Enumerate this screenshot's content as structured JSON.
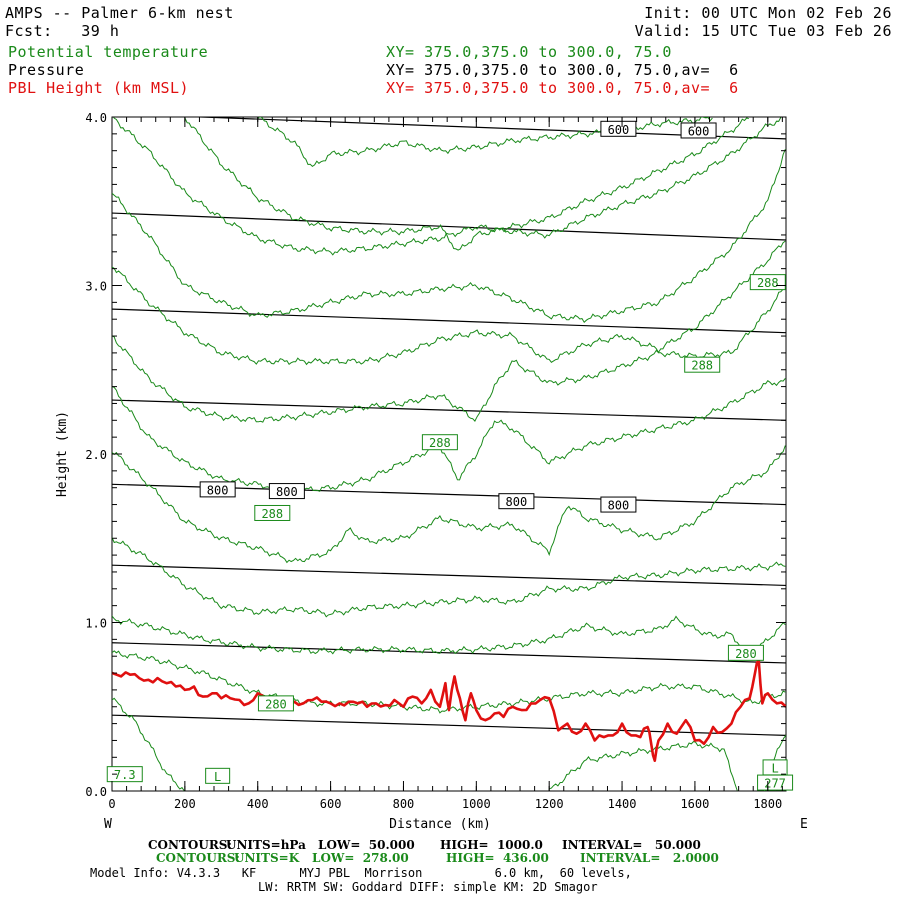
{
  "header": {
    "model_title": "AMPS -- Palmer 6-km nest",
    "init_time": "Init: 00 UTC Mon 02 Feb 26",
    "forecast": "Fcst:   39 h",
    "valid_time": "Valid: 15 UTC Tue 03 Feb 26",
    "fields": [
      {
        "name": "Potential temperature",
        "xy": "XY= 375.0,375.0 to 300.0, 75.0",
        "color": "#1a8a1a"
      },
      {
        "name": "Pressure",
        "xy": "XY= 375.0,375.0 to 300.0, 75.0,av=  6",
        "color": "#000000"
      },
      {
        "name": "PBL Height (km MSL)",
        "xy": "XY= 375.0,375.0 to 300.0, 75.0,av=  6",
        "color": "#e01010"
      }
    ]
  },
  "footer": {
    "pressure_contours": {
      "label": "CONTOURS:",
      "units": "UNITS=hPa",
      "low": "LOW=  50.000",
      "high": "HIGH=  1000.0",
      "interval": "INTERVAL=   50.000"
    },
    "theta_contours": {
      "label": "CONTOURS:",
      "units": "UNITS=K",
      "low": "LOW=  278.00",
      "high": "HIGH=  436.00",
      "interval": "INTERVAL=   2.0000"
    },
    "model_info_1": "Model Info: V4.3.3   KF      MYJ PBL  Morrison          6.0 km,  60 levels,",
    "model_info_2": "LW: RRTM SW: Goddard DIFF: simple KM: 2D Smagor"
  },
  "chart_data": {
    "type": "line",
    "title": "",
    "xlabel": "Distance (km)",
    "ylabel": "Height (km)",
    "xlim": [
      0,
      1850
    ],
    "ylim": [
      0,
      4.0
    ],
    "x_ticks": [
      0,
      200,
      400,
      600,
      800,
      1000,
      1200,
      1400,
      1600,
      1800
    ],
    "y_ticks": [
      0.0,
      1.0,
      2.0,
      3.0,
      4.0
    ],
    "x_tick_labels": [
      "0",
      "200",
      "400",
      "600",
      "800",
      "1000",
      "1200",
      "1400",
      "1600",
      "1800"
    ],
    "y_tick_labels": [
      "0.0",
      "1.0",
      "2.0",
      "3.0",
      "4.0"
    ],
    "left_end_label": "W",
    "right_end_label": "E",
    "colors": {
      "pressure": "#000000",
      "theta": "#1a8a1a",
      "pbl": "#e01010"
    },
    "pressure_isobars": [
      {
        "y0": 0.45,
        "y1": 0.33
      },
      {
        "y0": 0.88,
        "y1": 0.76
      },
      {
        "y0": 1.34,
        "y1": 1.22
      },
      {
        "y0": 1.82,
        "y1": 1.7
      },
      {
        "y0": 2.32,
        "y1": 2.2
      },
      {
        "y0": 2.86,
        "y1": 2.72
      },
      {
        "y0": 3.43,
        "y1": 3.27
      },
      {
        "y0": 4.02,
        "y1": 3.87
      }
    ],
    "pressure_labels": [
      {
        "text": "600",
        "x": 1390,
        "y": 3.93
      },
      {
        "text": "600",
        "x": 1610,
        "y": 3.92
      },
      {
        "text": "800",
        "x": 290,
        "y": 1.79
      },
      {
        "text": "800",
        "x": 480,
        "y": 1.78
      },
      {
        "text": "800",
        "x": 1110,
        "y": 1.72
      },
      {
        "text": "800",
        "x": 1390,
        "y": 1.7
      }
    ],
    "theta_contours": [
      {
        "name": "280a",
        "x": [
          0,
          120,
          250,
          400,
          550,
          700,
          800,
          900,
          1000,
          1100,
          1200,
          1300,
          1400,
          1500,
          1600,
          1700,
          1760,
          1800,
          1850
        ],
        "y": [
          0.82,
          0.78,
          0.7,
          0.58,
          0.52,
          0.52,
          0.5,
          0.48,
          0.5,
          0.52,
          0.55,
          0.58,
          0.58,
          0.62,
          0.62,
          0.56,
          0.52,
          0.56,
          0.58
        ]
      },
      {
        "name": "282",
        "x": [
          0,
          100,
          250,
          400,
          550,
          700,
          800,
          900,
          1000,
          1100,
          1200,
          1300,
          1400,
          1500,
          1550,
          1600,
          1650,
          1700,
          1750,
          1800,
          1850
        ],
        "y": [
          1.02,
          0.98,
          0.9,
          0.85,
          0.83,
          0.84,
          0.84,
          0.83,
          0.84,
          0.86,
          0.9,
          0.98,
          0.93,
          0.96,
          1.02,
          0.96,
          0.92,
          0.93,
          0.8,
          0.9,
          1.0
        ]
      },
      {
        "name": "284",
        "x": [
          0,
          100,
          200,
          300,
          400,
          500,
          600,
          700,
          800,
          900,
          1000,
          1100,
          1200,
          1300,
          1400,
          1500,
          1600,
          1700,
          1800,
          1850
        ],
        "y": [
          1.5,
          1.38,
          1.22,
          1.1,
          1.06,
          1.08,
          1.05,
          1.09,
          1.1,
          1.12,
          1.14,
          1.12,
          1.2,
          1.2,
          1.27,
          1.28,
          1.31,
          1.32,
          1.33,
          1.35
        ]
      },
      {
        "name": "286",
        "x": [
          0,
          100,
          200,
          300,
          400,
          500,
          600,
          650,
          700,
          800,
          900,
          1000,
          1100,
          1200,
          1250,
          1300,
          1400,
          1500,
          1600,
          1700,
          1800,
          1850
        ],
        "y": [
          2.02,
          1.82,
          1.6,
          1.5,
          1.44,
          1.36,
          1.42,
          1.55,
          1.48,
          1.5,
          1.62,
          1.56,
          1.58,
          1.42,
          1.7,
          1.62,
          1.55,
          1.5,
          1.6,
          1.8,
          1.9,
          2.05
        ]
      },
      {
        "name": "288a",
        "x": [
          0,
          100,
          200,
          300,
          400,
          500,
          600,
          700,
          800,
          900,
          950,
          1000,
          1050,
          1100,
          1200,
          1300,
          1400,
          1500,
          1600,
          1700,
          1800,
          1850
        ],
        "y": [
          2.4,
          2.1,
          1.95,
          1.85,
          1.82,
          1.78,
          1.8,
          1.85,
          1.95,
          2.05,
          1.85,
          2.0,
          2.2,
          2.15,
          1.95,
          2.05,
          2.1,
          2.15,
          2.2,
          2.3,
          2.42,
          2.43
        ]
      },
      {
        "name": "288b",
        "x": [
          0,
          100,
          200,
          300,
          400,
          500,
          600,
          700,
          800,
          900,
          1000,
          1050,
          1100,
          1200,
          1300,
          1400,
          1500,
          1600,
          1700,
          1800,
          1850
        ],
        "y": [
          2.7,
          2.45,
          2.28,
          2.22,
          2.2,
          2.22,
          2.25,
          2.28,
          2.3,
          2.35,
          2.2,
          2.4,
          2.55,
          2.42,
          2.45,
          2.52,
          2.6,
          2.58,
          2.6,
          2.85,
          3.0
        ]
      },
      {
        "name": "288c",
        "x": [
          0,
          100,
          200,
          300,
          400,
          500,
          600,
          700,
          800,
          900,
          1000,
          1100,
          1200,
          1300,
          1400,
          1500,
          1600,
          1700,
          1800,
          1850
        ],
        "y": [
          3.12,
          2.9,
          2.72,
          2.6,
          2.55,
          2.55,
          2.55,
          2.55,
          2.6,
          2.68,
          2.72,
          2.7,
          2.55,
          2.65,
          2.7,
          2.62,
          2.75,
          2.95,
          3.15,
          3.28
        ]
      },
      {
        "name": "290",
        "x": [
          0,
          100,
          200,
          300,
          400,
          500,
          600,
          700,
          800,
          900,
          1000,
          1100,
          1200,
          1300,
          1400,
          1500,
          1600,
          1700,
          1800,
          1850
        ],
        "y": [
          3.55,
          3.3,
          3.0,
          2.9,
          2.82,
          2.85,
          2.9,
          2.95,
          2.95,
          2.98,
          3.0,
          2.92,
          2.82,
          2.8,
          2.85,
          2.9,
          3.05,
          3.22,
          3.5,
          3.82
        ]
      },
      {
        "name": "292",
        "x": [
          0,
          100,
          200,
          300,
          400,
          500,
          600,
          700,
          800,
          900,
          1000,
          1100,
          1200,
          1300,
          1400,
          1500,
          1600,
          1700,
          1800,
          1850
        ],
        "y": [
          4.0,
          3.8,
          3.55,
          3.4,
          3.28,
          3.22,
          3.2,
          3.22,
          3.25,
          3.28,
          3.35,
          3.32,
          3.3,
          3.4,
          3.48,
          3.55,
          3.65,
          3.78,
          3.95,
          4.0
        ]
      },
      {
        "name": "294",
        "x": [
          200,
          300,
          400,
          500,
          600,
          700,
          800,
          900,
          950,
          1000,
          1100,
          1200,
          1300,
          1400,
          1500,
          1600,
          1700,
          1750
        ],
        "y": [
          4.0,
          3.72,
          3.52,
          3.4,
          3.34,
          3.32,
          3.32,
          3.35,
          3.2,
          3.3,
          3.35,
          3.4,
          3.5,
          3.58,
          3.68,
          3.78,
          3.92,
          4.0
        ]
      },
      {
        "name": "296",
        "x": [
          400,
          500,
          550,
          600,
          700,
          800,
          900,
          1000,
          1100,
          1200,
          1300,
          1400,
          1500,
          1600,
          1650
        ],
        "y": [
          4.0,
          3.85,
          3.7,
          3.78,
          3.8,
          3.85,
          3.8,
          3.82,
          3.86,
          3.88,
          3.9,
          3.92,
          3.96,
          3.98,
          4.0
        ]
      },
      {
        "name": "278",
        "x": [
          0,
          60,
          110,
          150,
          200
        ],
        "y": [
          0.55,
          0.42,
          0.25,
          0.1,
          0.0
        ]
      },
      {
        "name": "276",
        "x": [
          1200,
          1300,
          1400,
          1500,
          1600,
          1680,
          1700,
          1720
        ],
        "y": [
          0.0,
          0.18,
          0.22,
          0.25,
          0.28,
          0.25,
          0.1,
          0.0
        ]
      },
      {
        "name": "276b",
        "x": [
          1790,
          1820,
          1850
        ],
        "y": [
          0.0,
          0.2,
          0.35
        ]
      }
    ],
    "theta_labels": [
      {
        "text": "288",
        "x": 1800,
        "y": 3.02
      },
      {
        "text": "288",
        "x": 1620,
        "y": 2.53
      },
      {
        "text": "288",
        "x": 900,
        "y": 2.07
      },
      {
        "text": "288",
        "x": 440,
        "y": 1.65
      },
      {
        "text": "280",
        "x": 1740,
        "y": 0.82
      },
      {
        "text": "280",
        "x": 450,
        "y": 0.52
      },
      {
        "text": "7.3",
        "x": 35,
        "y": 0.1
      },
      {
        "text": "L",
        "x": 290,
        "y": 0.09
      },
      {
        "text": "L",
        "x": 1820,
        "y": 0.14
      },
      {
        "text": "277",
        "x": 1820,
        "y": 0.05
      }
    ],
    "pbl_height": {
      "x": [
        0,
        25,
        50,
        75,
        100,
        125,
        150,
        175,
        200,
        225,
        250,
        275,
        300,
        325,
        350,
        375,
        400,
        425,
        450,
        475,
        500,
        525,
        550,
        575,
        600,
        625,
        650,
        675,
        700,
        725,
        750,
        775,
        800,
        825,
        850,
        875,
        900,
        915,
        925,
        940,
        955,
        970,
        985,
        1000,
        1025,
        1050,
        1075,
        1100,
        1125,
        1150,
        1175,
        1200,
        1225,
        1250,
        1275,
        1300,
        1325,
        1350,
        1375,
        1400,
        1425,
        1450,
        1470,
        1480,
        1490,
        1500,
        1525,
        1550,
        1575,
        1600,
        1625,
        1650,
        1675,
        1700,
        1725,
        1750,
        1765,
        1775,
        1785,
        1800,
        1825,
        1850
      ],
      "y": [
        0.7,
        0.68,
        0.69,
        0.67,
        0.66,
        0.67,
        0.64,
        0.62,
        0.6,
        0.62,
        0.56,
        0.58,
        0.55,
        0.55,
        0.54,
        0.52,
        0.58,
        0.53,
        0.54,
        0.52,
        0.53,
        0.52,
        0.54,
        0.53,
        0.52,
        0.52,
        0.53,
        0.52,
        0.5,
        0.52,
        0.51,
        0.54,
        0.5,
        0.56,
        0.52,
        0.6,
        0.5,
        0.64,
        0.48,
        0.68,
        0.55,
        0.42,
        0.58,
        0.48,
        0.42,
        0.46,
        0.44,
        0.5,
        0.48,
        0.52,
        0.54,
        0.55,
        0.36,
        0.4,
        0.34,
        0.4,
        0.3,
        0.32,
        0.33,
        0.4,
        0.33,
        0.32,
        0.38,
        0.28,
        0.18,
        0.3,
        0.4,
        0.34,
        0.42,
        0.3,
        0.28,
        0.38,
        0.35,
        0.4,
        0.5,
        0.55,
        0.7,
        0.78,
        0.52,
        0.58,
        0.52,
        0.5
      ]
    }
  }
}
